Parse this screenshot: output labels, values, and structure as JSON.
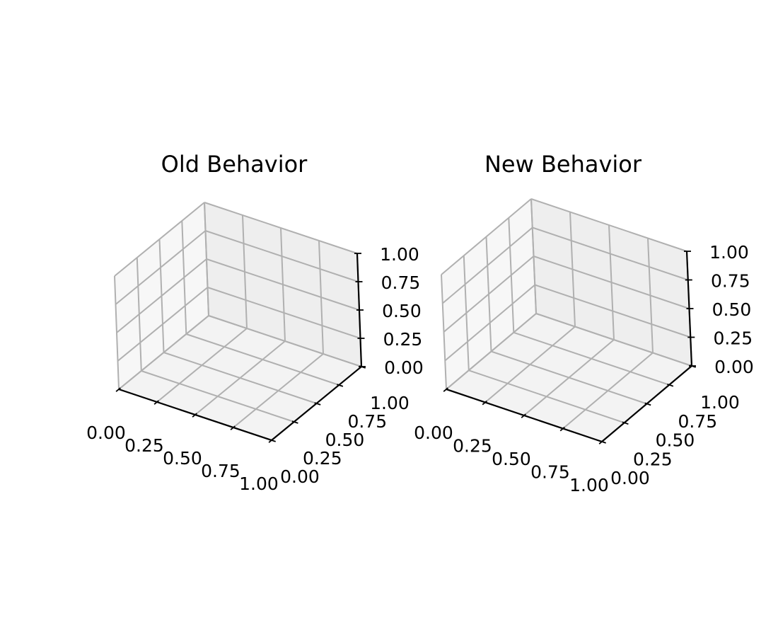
{
  "chart_data": [
    {
      "type": "scatter",
      "title": "Old Behavior",
      "x": [],
      "y": [],
      "z": [],
      "xlim": [
        0,
        1
      ],
      "ylim": [
        0,
        1
      ],
      "zlim": [
        0,
        1
      ],
      "xticks": [
        "0.00",
        "0.25",
        "0.50",
        "0.75",
        "1.00"
      ],
      "yticks": [
        "0.00",
        "0.25",
        "0.50",
        "0.75",
        "1.00"
      ],
      "zticks": [
        "0.00",
        "0.25",
        "0.50",
        "0.75",
        "1.00"
      ],
      "grid": true,
      "projection": "3d"
    },
    {
      "type": "scatter",
      "title": "New Behavior",
      "x": [],
      "y": [],
      "z": [],
      "xlim": [
        0,
        1
      ],
      "ylim": [
        0,
        1
      ],
      "zlim": [
        0,
        1
      ],
      "xticks": [
        "0.00",
        "0.25",
        "0.50",
        "0.75",
        "1.00"
      ],
      "yticks": [
        "0.00",
        "0.25",
        "0.50",
        "0.75",
        "1.00"
      ],
      "zticks": [
        "0.00",
        "0.25",
        "0.50",
        "0.75",
        "1.00"
      ],
      "grid": true,
      "projection": "3d"
    }
  ],
  "colors": {
    "pane_back": "#eeeeee",
    "pane_side": "#f7f7f7",
    "pane_floor": "#f3f3f3",
    "grid": "#b0b0b0",
    "axis": "#000000"
  }
}
